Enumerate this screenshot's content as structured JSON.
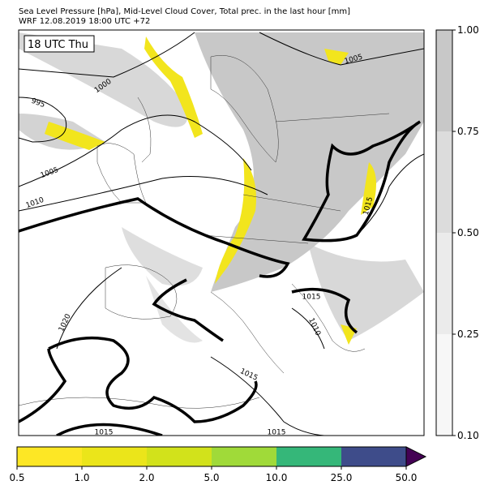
{
  "header": {
    "title": "Sea Level Pressure [hPa], Mid-Level Cloud Cover, Total prec. in the last hour [mm]",
    "subtitle": "WRF 12.08.2019 18:00 UTC +72"
  },
  "map": {
    "time_label": "18 UTC Thu",
    "contour_labels": [
      "1000",
      "995",
      "1005",
      "1010",
      "1005",
      "1015",
      "1015",
      "1010",
      "1020",
      "1015",
      "1015",
      "1015"
    ]
  },
  "cloud_colorbar": {
    "ticks": [
      "0.10",
      "0.25",
      "0.50",
      "0.75",
      "1.00"
    ],
    "colors": [
      "#f7f7f7",
      "#ebebeb",
      "#dcdcdc",
      "#c8c8c8"
    ]
  },
  "precip_colorbar": {
    "ticks": [
      "0.5",
      "1.0",
      "2.0",
      "5.0",
      "10.0",
      "25.0",
      "50.0"
    ],
    "colors": [
      "#fde725",
      "#ebe51a",
      "#d2e21b",
      "#a0da39",
      "#35b779",
      "#3e4c8a"
    ],
    "extend_color": "#440154"
  }
}
